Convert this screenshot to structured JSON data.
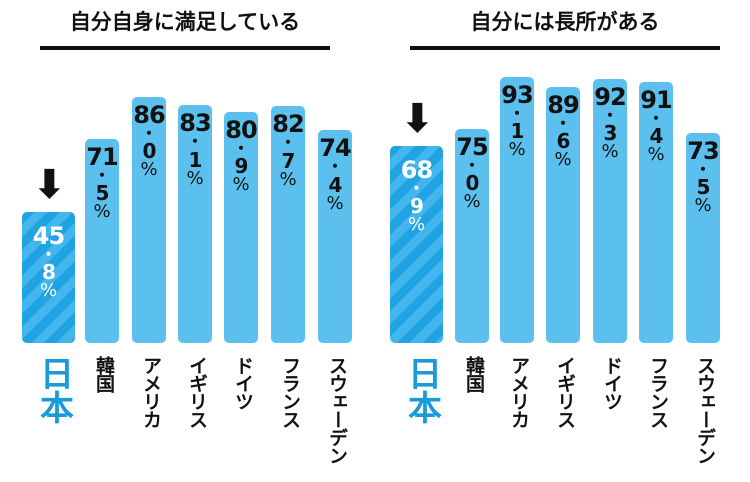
{
  "chart_data": [
    {
      "type": "bar",
      "title": "自分自身に満足している",
      "categories": [
        "日本",
        "韓国",
        "アメリカ",
        "イギリス",
        "ドイツ",
        "フランス",
        "スウェーデン"
      ],
      "values": [
        45.8,
        71.5,
        86.0,
        83.1,
        80.9,
        82.7,
        74.4
      ],
      "unit": "%",
      "highlight": "日本"
    },
    {
      "type": "bar",
      "title": "自分には長所がある",
      "categories": [
        "日本",
        "韓国",
        "アメリカ",
        "イギリス",
        "ドイツ",
        "フランス",
        "スウェーデン"
      ],
      "values": [
        68.9,
        75.0,
        93.1,
        89.6,
        92.3,
        91.4,
        73.5
      ],
      "unit": "%",
      "highlight": "日本"
    }
  ],
  "colors": {
    "bar": "#5bc0ee",
    "highlight": "#1fa3e3",
    "highlight_label": "#1a9ad9"
  },
  "icons": {
    "highlight_marker": "down-arrow-icon"
  }
}
